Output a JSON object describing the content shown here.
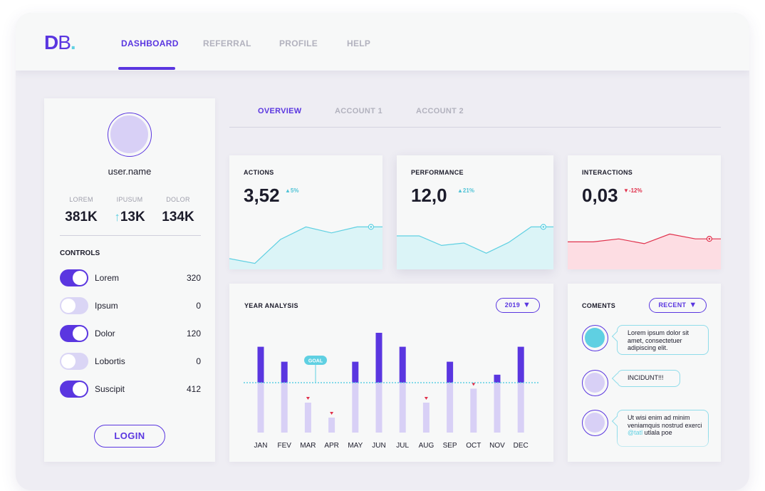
{
  "logo": {
    "letter1": "D",
    "letter2": "B",
    "dot": "."
  },
  "nav": [
    {
      "label": "DASHBOARD",
      "active": true
    },
    {
      "label": "REFERRAL",
      "active": false
    },
    {
      "label": "PROFILE",
      "active": false
    },
    {
      "label": "HELP",
      "active": false
    }
  ],
  "profile": {
    "username": "user.name",
    "stats": [
      {
        "label": "LOREM",
        "value": "381K",
        "arrow": ""
      },
      {
        "label": "IPUSUM",
        "value": "13K",
        "arrow": "↑"
      },
      {
        "label": "DOLOR",
        "value": "134K",
        "arrow": ""
      }
    ],
    "controls_title": "CONTROLS",
    "controls": [
      {
        "label": "Lorem",
        "value": "320",
        "on": true
      },
      {
        "label": "Ipsum",
        "value": "0",
        "on": false
      },
      {
        "label": "Dolor",
        "value": "120",
        "on": true
      },
      {
        "label": "Lobortis",
        "value": "0",
        "on": false
      },
      {
        "label": "Suscipit",
        "value": "412",
        "on": true
      }
    ],
    "login_label": "LOGIN"
  },
  "subtabs": [
    {
      "label": "OVERVIEW",
      "active": true
    },
    {
      "label": "ACCOUNT 1",
      "active": false
    },
    {
      "label": "ACCOUNT 2",
      "active": false
    }
  ],
  "stat_cards": [
    {
      "title": "ACTIONS",
      "value": "3,52",
      "change": "▲5%",
      "direction": "up",
      "fill": "#dbf4f7",
      "stroke": "#5fd0e2",
      "trend": [
        0.18,
        0.1,
        0.5,
        0.71,
        0.61,
        0.71,
        0.71
      ]
    },
    {
      "title": "PERFORMANCE",
      "value": "12,0",
      "change": "▲21%",
      "direction": "up",
      "fill": "#dbf4f7",
      "stroke": "#5fd0e2",
      "trend": [
        0.56,
        0.56,
        0.4,
        0.44,
        0.27,
        0.45,
        0.71,
        0.71
      ]
    },
    {
      "title": "INTERACTIONS",
      "value": "0,03",
      "change": "▼-12%",
      "direction": "down",
      "fill": "#fddde3",
      "stroke": "#e0304b",
      "trend": [
        0.46,
        0.46,
        0.51,
        0.43,
        0.59,
        0.51,
        0.51
      ]
    }
  ],
  "year_analysis": {
    "title": "YEAR ANALYSIS",
    "year_label": "2019",
    "goal_label": "GOAL",
    "goal_value": 0.5,
    "accent_color": "#5a36e0",
    "base_color": "#d8d0f6",
    "goal_color": "#5fd0e2",
    "below_color": "#e0304b"
  },
  "chart_data": {
    "type": "bar",
    "categories": [
      "JAN",
      "FEV",
      "MAR",
      "APR",
      "MAY",
      "JUN",
      "JUL",
      "AUG",
      "SEP",
      "OCT",
      "NOV",
      "DEC"
    ],
    "values": [
      0.86,
      0.71,
      0.3,
      0.15,
      0.71,
      1.0,
      0.86,
      0.3,
      0.71,
      0.44,
      0.58,
      0.86
    ],
    "goal": 0.5,
    "annotations": [
      "GOAL"
    ]
  },
  "comments": {
    "title": "COMENTS",
    "filter_label": "RECENT",
    "items": [
      {
        "text": "Lorem ipsum dolor sit amet, consectetuer adipiscing elit.",
        "avatar_color": "#5fd0e2"
      },
      {
        "text": "INCIDUNT!!!",
        "avatar_color": "#d8d0f6"
      },
      {
        "text_before": "Ut wisi enim ad minim veniamquis nostrud exerci ",
        "mention": "@tatl",
        "text_after": " utlala poe",
        "avatar_color": "#d8d0f6"
      }
    ]
  }
}
